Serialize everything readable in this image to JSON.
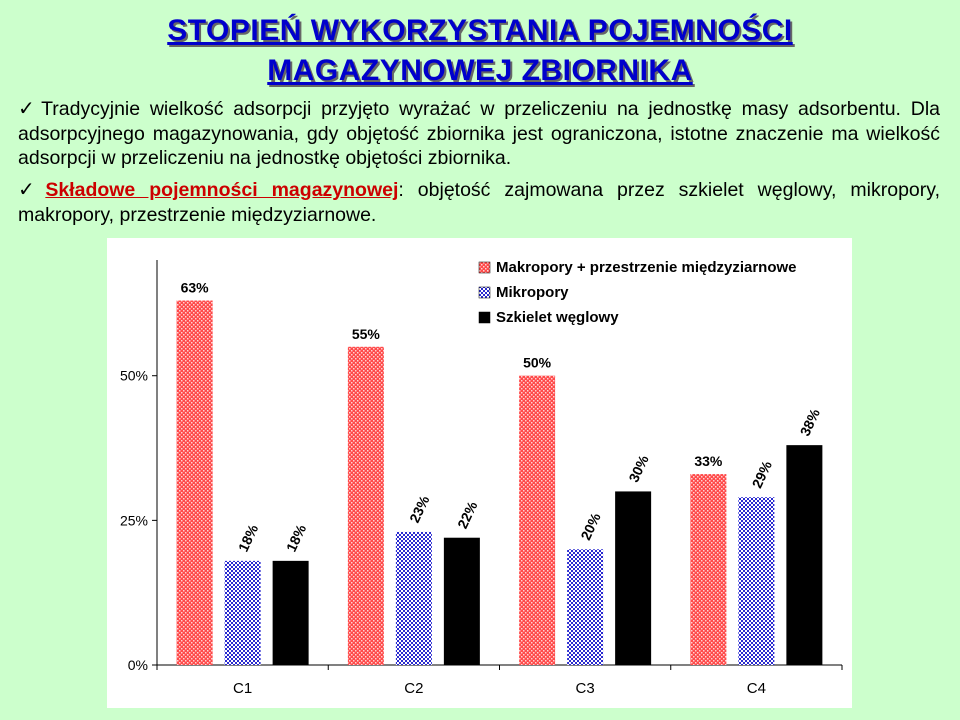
{
  "slide": {
    "title_line1": "STOPIEŃ WYKORZYSTANIA POJEMNOŚCI",
    "title_line2": "MAGAZYNOWEJ ZBIORNIKA",
    "paragraph1": "Tradycyjnie wielkość adsorpcji przyjęto wyrażać w przeliczeniu na jednostkę masy adsorbentu. Dla adsorpcyjnego magazynowania, gdy objętość zbiornika jest ograniczona, istotne znaczenie ma wielkość adsorpcji w przeliczeniu na jednostkę objętości zbiornika.",
    "paragraph2_term": "Składowe pojemności magazynowej",
    "paragraph2_rest": ": objętość zajmowana przez szkielet węglowy, mikropory, makropory, przestrzenie międzyziarnowe.",
    "check_icon": "✓"
  },
  "colors": {
    "background": "#ccffcc",
    "title": "#0000cc",
    "series_makro": "#ff3333",
    "series_mikro": "#3333cc",
    "series_szkielet": "#000000"
  },
  "chart_data": {
    "type": "bar",
    "title": "",
    "xlabel": "",
    "ylabel": "",
    "categories": [
      "C1",
      "C2",
      "C3",
      "C4"
    ],
    "ylim": [
      0,
      0.7
    ],
    "yticks": [
      {
        "value": 0,
        "label": "0%"
      },
      {
        "value": 0.25,
        "label": "25%"
      },
      {
        "value": 0.5,
        "label": "50%"
      }
    ],
    "grid": false,
    "legend_position": "top-right",
    "series": [
      {
        "name": "Makropory + przestrzenie międzyziarnowe",
        "pattern": "dots-red",
        "values": [
          0.63,
          0.55,
          0.5,
          0.33
        ],
        "labels": [
          "63%",
          "55%",
          "50%",
          "33%"
        ],
        "label_rotated": false
      },
      {
        "name": "Mikropory",
        "pattern": "checker-blue",
        "values": [
          0.18,
          0.23,
          0.2,
          0.29
        ],
        "labels": [
          "18%",
          "23%",
          "20%",
          "29%"
        ],
        "label_rotated": true
      },
      {
        "name": "Szkielet węglowy",
        "pattern": "solid-black",
        "values": [
          0.18,
          0.22,
          0.3,
          0.38
        ],
        "labels": [
          "18%",
          "22%",
          "30%",
          "38%"
        ],
        "label_rotated": true
      }
    ]
  }
}
